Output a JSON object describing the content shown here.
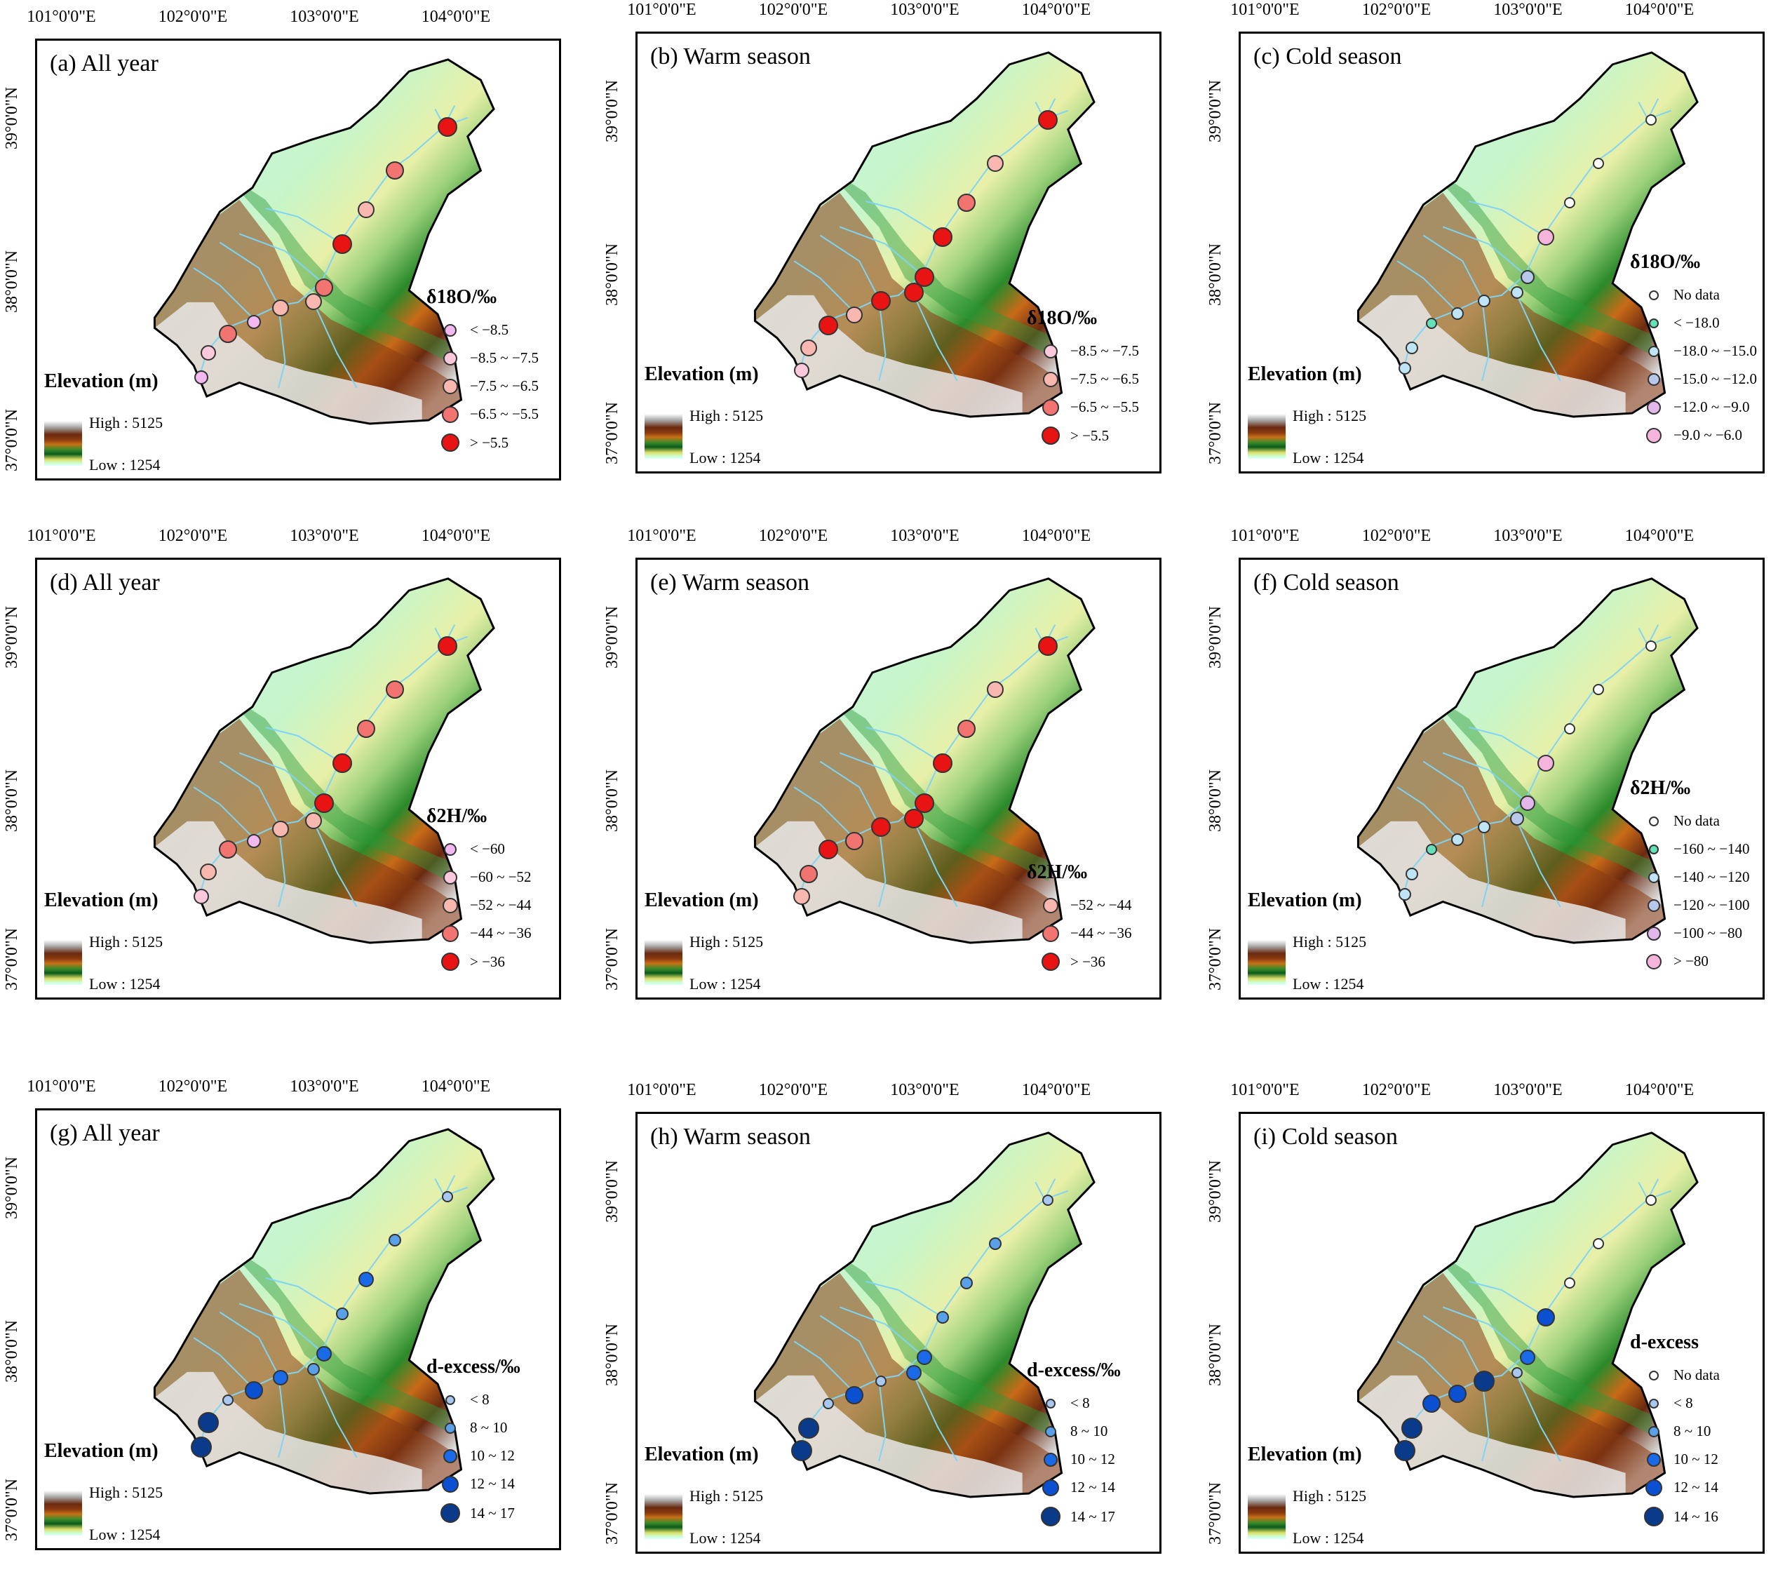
{
  "lon_labels": [
    "101°0'0\"E",
    "102°0'0\"E",
    "103°0'0\"E",
    "104°0'0\"E"
  ],
  "lat_labels": [
    "37°0'0\"N",
    "38°0'0\"N",
    "39°0'0\"N"
  ],
  "elevation": {
    "title": "Elevation (m)",
    "high": "High : 5125",
    "low": "Low : 1254"
  },
  "colors": {
    "river": "#7fd4f5",
    "border": "#000000"
  },
  "panels": [
    {
      "title": "(a) All year",
      "legend_title": "δ18O/‰",
      "legend": [
        {
          "label": "< −8.5",
          "color": "#f2b8f0",
          "size": 18
        },
        {
          "label": "−8.5 ~ −7.5",
          "color": "#fbc8dc",
          "size": 20
        },
        {
          "label": "−7.5 ~ −6.5",
          "color": "#f8b8b0",
          "size": 22
        },
        {
          "label": "−6.5 ~ −5.5",
          "color": "#f27470",
          "size": 24
        },
        {
          "label": "> −5.5",
          "color": "#e81414",
          "size": 26
        }
      ],
      "sites": [
        {
          "lon": 103.67,
          "lat": 38.98,
          "cls": 4
        },
        {
          "lon": 103.27,
          "lat": 38.73,
          "cls": 3
        },
        {
          "lon": 103.05,
          "lat": 38.5,
          "cls": 2
        },
        {
          "lon": 102.87,
          "lat": 38.3,
          "cls": 4
        },
        {
          "lon": 102.73,
          "lat": 38.05,
          "cls": 3
        },
        {
          "lon": 102.65,
          "lat": 37.97,
          "cls": 2
        },
        {
          "lon": 102.4,
          "lat": 37.93,
          "cls": 2
        },
        {
          "lon": 102.2,
          "lat": 37.85,
          "cls": 0
        },
        {
          "lon": 102.0,
          "lat": 37.78,
          "cls": 3
        },
        {
          "lon": 101.85,
          "lat": 37.67,
          "cls": 1
        },
        {
          "lon": 101.8,
          "lat": 37.53,
          "cls": 0
        }
      ]
    },
    {
      "title": "(b) Warm season",
      "legend_title": "δ18O/‰",
      "legend": [
        {
          "label": "−8.5 ~ −7.5",
          "color": "#fbc8dc",
          "size": 20
        },
        {
          "label": "−7.5 ~ −6.5",
          "color": "#f8b8b0",
          "size": 22
        },
        {
          "label": "−6.5 ~ −5.5",
          "color": "#f27470",
          "size": 24
        },
        {
          "label": "> −5.5",
          "color": "#e81414",
          "size": 26
        }
      ],
      "sites": [
        {
          "lon": 103.67,
          "lat": 38.98,
          "cls": 3
        },
        {
          "lon": 103.27,
          "lat": 38.73,
          "cls": 1
        },
        {
          "lon": 103.05,
          "lat": 38.5,
          "cls": 2
        },
        {
          "lon": 102.87,
          "lat": 38.3,
          "cls": 3
        },
        {
          "lon": 102.73,
          "lat": 38.07,
          "cls": 3
        },
        {
          "lon": 102.65,
          "lat": 37.98,
          "cls": 3
        },
        {
          "lon": 102.4,
          "lat": 37.93,
          "cls": 3
        },
        {
          "lon": 102.2,
          "lat": 37.85,
          "cls": 1
        },
        {
          "lon": 102.0,
          "lat": 37.79,
          "cls": 3
        },
        {
          "lon": 101.85,
          "lat": 37.66,
          "cls": 1
        },
        {
          "lon": 101.8,
          "lat": 37.53,
          "cls": 0
        }
      ]
    },
    {
      "title": "(c) Cold season",
      "legend_title": "δ18O/‰",
      "legend": [
        {
          "label": "No data",
          "color": "#ffffff",
          "size": 14
        },
        {
          "label": "< −18.0",
          "color": "#66e0b8",
          "size": 14
        },
        {
          "label": "−18.0 ~ −15.0",
          "color": "#bfe4f5",
          "size": 16
        },
        {
          "label": "−15.0 ~ −12.0",
          "color": "#b8c8ea",
          "size": 18
        },
        {
          "label": "−12.0 ~ −9.0",
          "color": "#e2b8ea",
          "size": 20
        },
        {
          "label": "−9.0 ~ −6.0",
          "color": "#f5b4dc",
          "size": 22
        }
      ],
      "sites": [
        {
          "lon": 103.67,
          "lat": 38.98,
          "cls": 0
        },
        {
          "lon": 103.27,
          "lat": 38.73,
          "cls": 0
        },
        {
          "lon": 103.05,
          "lat": 38.5,
          "cls": 0
        },
        {
          "lon": 102.87,
          "lat": 38.3,
          "cls": 5
        },
        {
          "lon": 102.73,
          "lat": 38.07,
          "cls": 3
        },
        {
          "lon": 102.65,
          "lat": 37.98,
          "cls": 2
        },
        {
          "lon": 102.4,
          "lat": 37.93,
          "cls": 2
        },
        {
          "lon": 102.2,
          "lat": 37.86,
          "cls": 2
        },
        {
          "lon": 102.0,
          "lat": 37.8,
          "cls": 1
        },
        {
          "lon": 101.85,
          "lat": 37.66,
          "cls": 2
        },
        {
          "lon": 101.8,
          "lat": 37.54,
          "cls": 2
        }
      ]
    },
    {
      "title": "(d) All year",
      "legend_title": "δ2H/‰",
      "legend": [
        {
          "label": "< −60",
          "color": "#f2b8f0",
          "size": 18
        },
        {
          "label": "−60 ~ −52",
          "color": "#fbc8dc",
          "size": 20
        },
        {
          "label": "−52 ~ −44",
          "color": "#f8b8b0",
          "size": 22
        },
        {
          "label": "−44 ~ −36",
          "color": "#f27470",
          "size": 24
        },
        {
          "label": "> −36",
          "color": "#e81414",
          "size": 26
        }
      ],
      "sites": [
        {
          "lon": 103.67,
          "lat": 38.98,
          "cls": 4
        },
        {
          "lon": 103.27,
          "lat": 38.73,
          "cls": 3
        },
        {
          "lon": 103.05,
          "lat": 38.5,
          "cls": 3
        },
        {
          "lon": 102.87,
          "lat": 38.3,
          "cls": 4
        },
        {
          "lon": 102.73,
          "lat": 38.07,
          "cls": 4
        },
        {
          "lon": 102.65,
          "lat": 37.97,
          "cls": 2
        },
        {
          "lon": 102.4,
          "lat": 37.92,
          "cls": 2
        },
        {
          "lon": 102.2,
          "lat": 37.85,
          "cls": 0
        },
        {
          "lon": 102.0,
          "lat": 37.8,
          "cls": 3
        },
        {
          "lon": 101.85,
          "lat": 37.67,
          "cls": 2
        },
        {
          "lon": 101.8,
          "lat": 37.53,
          "cls": 1
        }
      ]
    },
    {
      "title": "(e) Warm season",
      "legend_title": "δ2H/‰",
      "legend": [
        {
          "label": "−52 ~ −44",
          "color": "#f8b8b0",
          "size": 22
        },
        {
          "label": "−44 ~ −36",
          "color": "#f27470",
          "size": 24
        },
        {
          "label": "> −36",
          "color": "#e81414",
          "size": 26
        }
      ],
      "sites": [
        {
          "lon": 103.67,
          "lat": 38.98,
          "cls": 2
        },
        {
          "lon": 103.27,
          "lat": 38.73,
          "cls": 0
        },
        {
          "lon": 103.05,
          "lat": 38.5,
          "cls": 1
        },
        {
          "lon": 102.87,
          "lat": 38.3,
          "cls": 2
        },
        {
          "lon": 102.73,
          "lat": 38.07,
          "cls": 2
        },
        {
          "lon": 102.65,
          "lat": 37.98,
          "cls": 2
        },
        {
          "lon": 102.4,
          "lat": 37.93,
          "cls": 2
        },
        {
          "lon": 102.2,
          "lat": 37.85,
          "cls": 1
        },
        {
          "lon": 102.0,
          "lat": 37.8,
          "cls": 2
        },
        {
          "lon": 101.85,
          "lat": 37.66,
          "cls": 1
        },
        {
          "lon": 101.8,
          "lat": 37.53,
          "cls": 0
        }
      ]
    },
    {
      "title": "(f) Cold season",
      "legend_title": "δ2H/‰",
      "legend": [
        {
          "label": "No data",
          "color": "#ffffff",
          "size": 14
        },
        {
          "label": "−160 ~ −140",
          "color": "#66e0b8",
          "size": 14
        },
        {
          "label": "−140 ~ −120",
          "color": "#bfe4f5",
          "size": 16
        },
        {
          "label": "−120 ~ −100",
          "color": "#b8c8ea",
          "size": 18
        },
        {
          "label": "−100 ~ −80",
          "color": "#e2b8ea",
          "size": 20
        },
        {
          "label": "> −80",
          "color": "#f5b4dc",
          "size": 22
        }
      ],
      "sites": [
        {
          "lon": 103.67,
          "lat": 38.98,
          "cls": 0
        },
        {
          "lon": 103.27,
          "lat": 38.73,
          "cls": 0
        },
        {
          "lon": 103.05,
          "lat": 38.5,
          "cls": 0
        },
        {
          "lon": 102.87,
          "lat": 38.3,
          "cls": 5
        },
        {
          "lon": 102.73,
          "lat": 38.07,
          "cls": 4
        },
        {
          "lon": 102.65,
          "lat": 37.98,
          "cls": 3
        },
        {
          "lon": 102.4,
          "lat": 37.93,
          "cls": 2
        },
        {
          "lon": 102.2,
          "lat": 37.86,
          "cls": 2
        },
        {
          "lon": 102.0,
          "lat": 37.8,
          "cls": 1
        },
        {
          "lon": 101.85,
          "lat": 37.66,
          "cls": 2
        },
        {
          "lon": 101.8,
          "lat": 37.54,
          "cls": 2
        }
      ]
    },
    {
      "title": "(g) All year",
      "legend_title": "d-excess/‰",
      "legend": [
        {
          "label": "< 8",
          "color": "#a8c8f0",
          "size": 14
        },
        {
          "label": "8 ~ 10",
          "color": "#5aa0e8",
          "size": 16
        },
        {
          "label": "10 ~ 12",
          "color": "#1a6ae8",
          "size": 20
        },
        {
          "label": "12 ~ 14",
          "color": "#0a50d0",
          "size": 24
        },
        {
          "label": "14 ~ 17",
          "color": "#0a3a8a",
          "size": 28
        }
      ],
      "sites": [
        {
          "lon": 103.67,
          "lat": 38.98,
          "cls": 0
        },
        {
          "lon": 103.27,
          "lat": 38.73,
          "cls": 1
        },
        {
          "lon": 103.05,
          "lat": 38.5,
          "cls": 2
        },
        {
          "lon": 102.87,
          "lat": 38.3,
          "cls": 1
        },
        {
          "lon": 102.73,
          "lat": 38.07,
          "cls": 2
        },
        {
          "lon": 102.65,
          "lat": 37.98,
          "cls": 1
        },
        {
          "lon": 102.4,
          "lat": 37.93,
          "cls": 2
        },
        {
          "lon": 102.2,
          "lat": 37.86,
          "cls": 3
        },
        {
          "lon": 102.0,
          "lat": 37.8,
          "cls": 0
        },
        {
          "lon": 101.85,
          "lat": 37.67,
          "cls": 4
        },
        {
          "lon": 101.8,
          "lat": 37.53,
          "cls": 4
        }
      ]
    },
    {
      "title": "(h) Warm season",
      "legend_title": "d-excess/‰",
      "legend": [
        {
          "label": "< 8",
          "color": "#a8c8f0",
          "size": 14
        },
        {
          "label": "8 ~ 10",
          "color": "#5aa0e8",
          "size": 16
        },
        {
          "label": "10 ~ 12",
          "color": "#1a6ae8",
          "size": 20
        },
        {
          "label": "12 ~ 14",
          "color": "#0a50d0",
          "size": 24
        },
        {
          "label": "14 ~ 17",
          "color": "#0a3a8a",
          "size": 28
        }
      ],
      "sites": [
        {
          "lon": 103.67,
          "lat": 38.98,
          "cls": 0
        },
        {
          "lon": 103.27,
          "lat": 38.73,
          "cls": 1
        },
        {
          "lon": 103.05,
          "lat": 38.5,
          "cls": 1
        },
        {
          "lon": 102.87,
          "lat": 38.3,
          "cls": 1
        },
        {
          "lon": 102.73,
          "lat": 38.07,
          "cls": 2
        },
        {
          "lon": 102.65,
          "lat": 37.98,
          "cls": 2
        },
        {
          "lon": 102.4,
          "lat": 37.93,
          "cls": 0
        },
        {
          "lon": 102.2,
          "lat": 37.85,
          "cls": 3
        },
        {
          "lon": 102.0,
          "lat": 37.8,
          "cls": 0
        },
        {
          "lon": 101.85,
          "lat": 37.66,
          "cls": 4
        },
        {
          "lon": 101.8,
          "lat": 37.53,
          "cls": 4
        }
      ]
    },
    {
      "title": "(i) Cold season",
      "legend_title": "d-excess",
      "legend": [
        {
          "label": "No data",
          "color": "#ffffff",
          "size": 14
        },
        {
          "label": "< 8",
          "color": "#a8c8f0",
          "size": 14
        },
        {
          "label": "8 ~ 10",
          "color": "#5aa0e8",
          "size": 16
        },
        {
          "label": "10 ~ 12",
          "color": "#1a6ae8",
          "size": 20
        },
        {
          "label": "12 ~ 14",
          "color": "#0a50d0",
          "size": 24
        },
        {
          "label": "14 ~ 16",
          "color": "#0a3a8a",
          "size": 28
        }
      ],
      "sites": [
        {
          "lon": 103.67,
          "lat": 38.98,
          "cls": 0
        },
        {
          "lon": 103.27,
          "lat": 38.73,
          "cls": 0
        },
        {
          "lon": 103.05,
          "lat": 38.5,
          "cls": 0
        },
        {
          "lon": 102.87,
          "lat": 38.3,
          "cls": 4
        },
        {
          "lon": 102.73,
          "lat": 38.07,
          "cls": 3
        },
        {
          "lon": 102.65,
          "lat": 37.98,
          "cls": 1
        },
        {
          "lon": 102.4,
          "lat": 37.93,
          "cls": 5
        },
        {
          "lon": 102.2,
          "lat": 37.86,
          "cls": 4
        },
        {
          "lon": 102.0,
          "lat": 37.8,
          "cls": 4
        },
        {
          "lon": 101.85,
          "lat": 37.66,
          "cls": 5
        },
        {
          "lon": 101.8,
          "lat": 37.53,
          "cls": 5
        }
      ]
    }
  ]
}
